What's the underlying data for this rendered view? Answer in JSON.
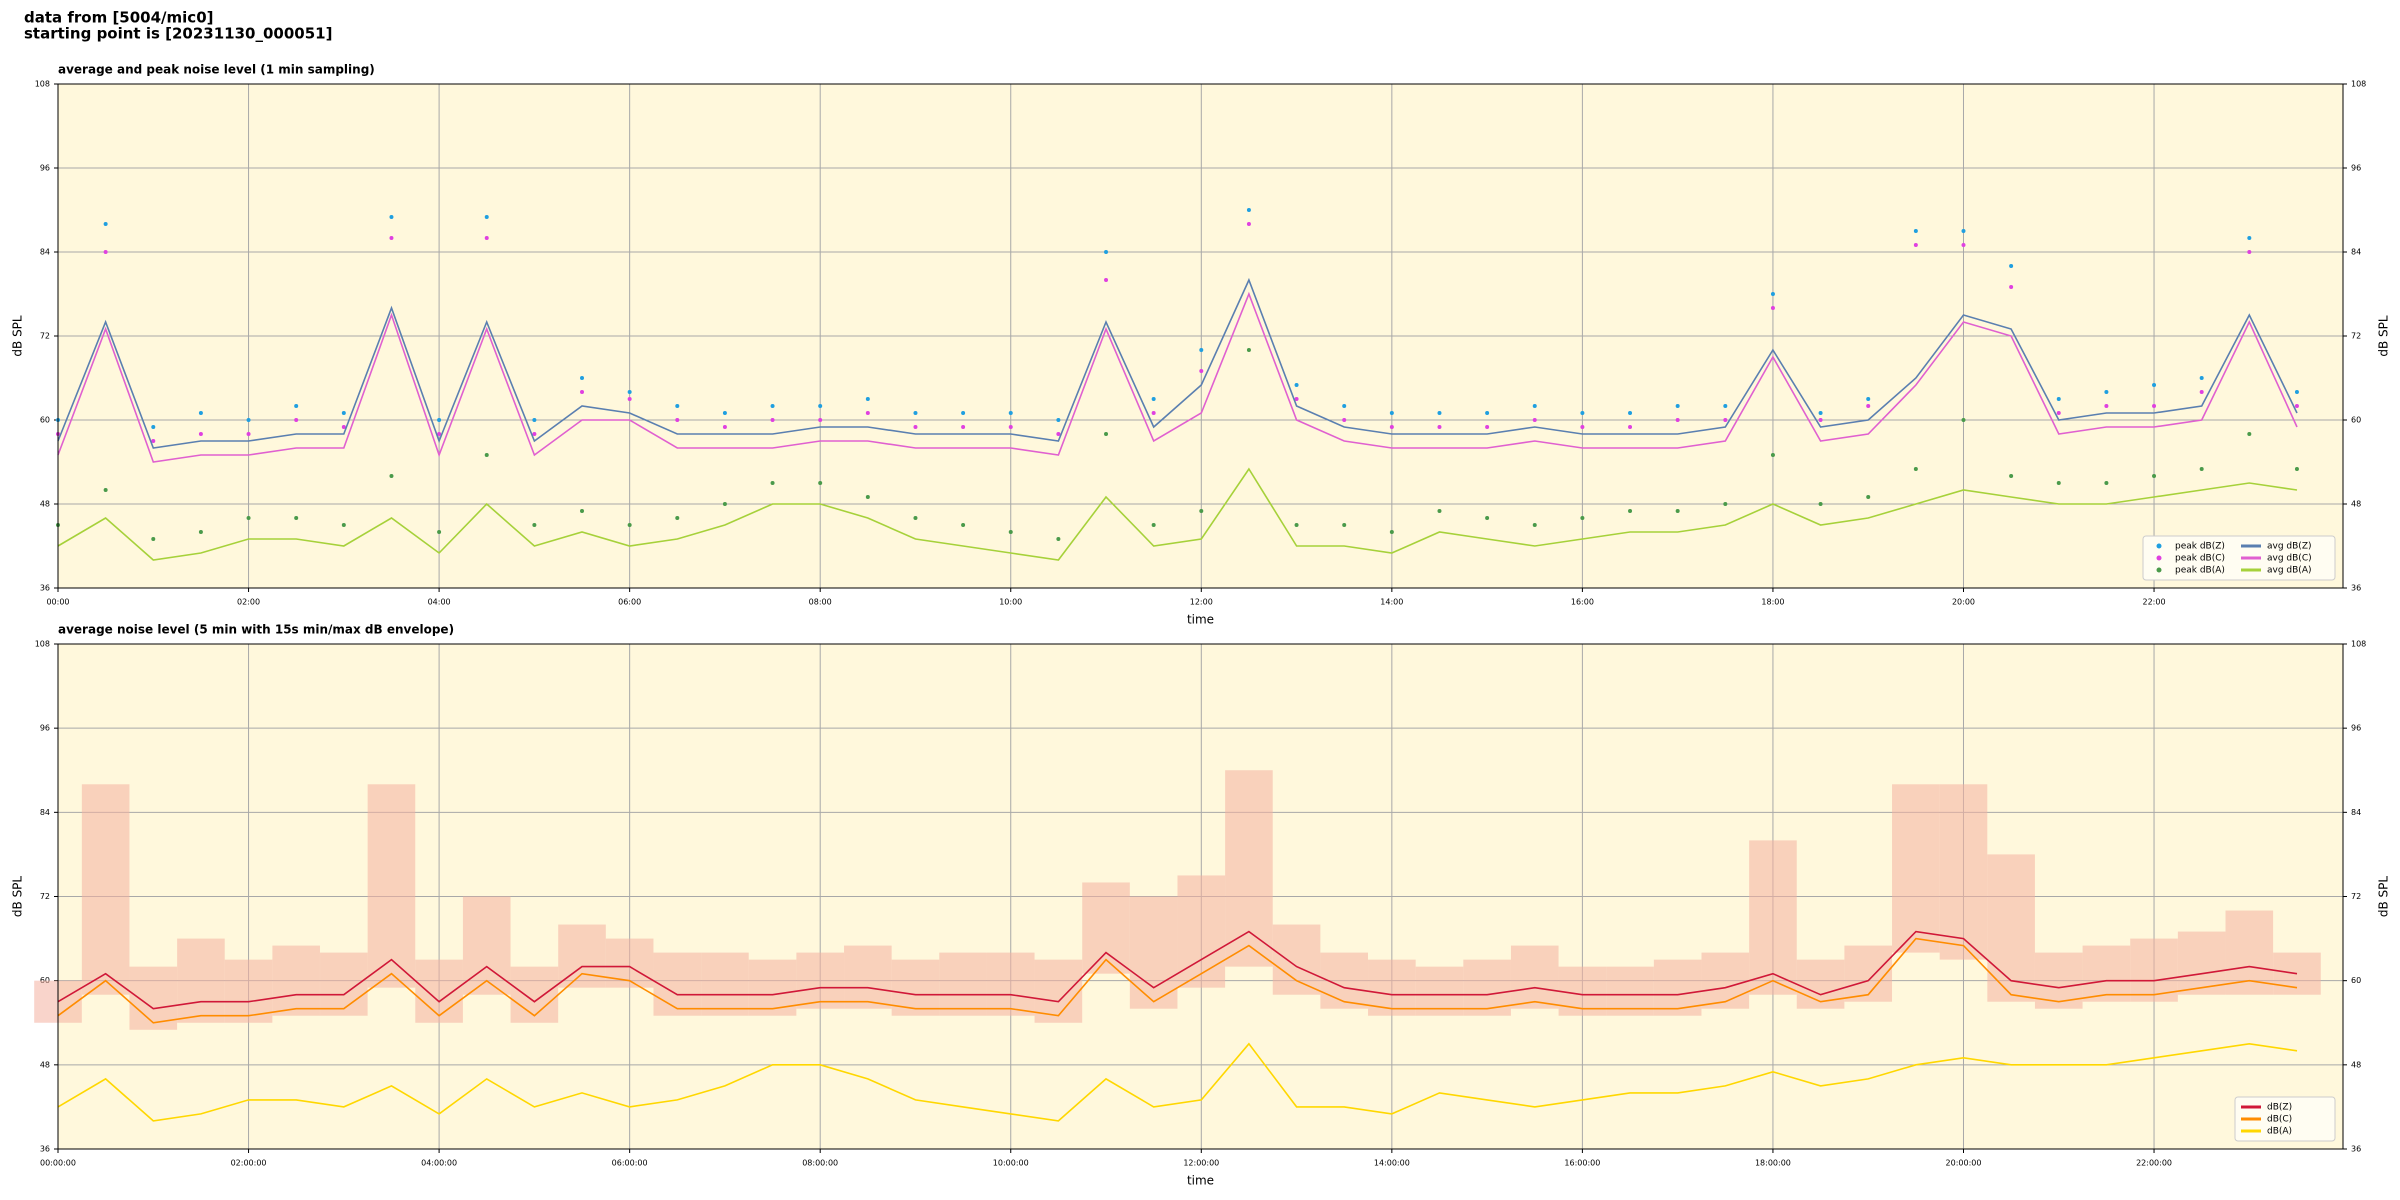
{
  "header": {
    "line1": "data from [5004/mic0]",
    "line2": "starting point is [20231130_000051]"
  },
  "chart_data": [
    {
      "type": "line",
      "title": "average and peak noise level (1 min sampling)",
      "x_label": "time",
      "y_label": "dB SPL",
      "x": [
        "00:00",
        "00:30",
        "01:00",
        "01:30",
        "02:00",
        "02:30",
        "03:00",
        "03:30",
        "04:00",
        "04:30",
        "05:00",
        "05:30",
        "06:00",
        "06:30",
        "07:00",
        "07:30",
        "08:00",
        "08:30",
        "09:00",
        "09:30",
        "10:00",
        "10:30",
        "11:00",
        "11:30",
        "12:00",
        "12:30",
        "13:00",
        "13:30",
        "14:00",
        "14:30",
        "15:00",
        "15:30",
        "16:00",
        "16:30",
        "17:00",
        "17:30",
        "18:00",
        "18:30",
        "19:00",
        "19:30",
        "20:00",
        "20:30",
        "21:00",
        "21:30",
        "22:00",
        "22:30",
        "23:00",
        "23:30"
      ],
      "xlim": [
        "00:00",
        "23:59"
      ],
      "xticks": [
        "00:00",
        "02:00",
        "04:00",
        "06:00",
        "08:00",
        "10:00",
        "12:00",
        "14:00",
        "16:00",
        "18:00",
        "20:00",
        "22:00"
      ],
      "ylim": [
        36,
        108
      ],
      "yticks": [
        36,
        48,
        60,
        72,
        84,
        96,
        108
      ],
      "grid": true,
      "background": "#fff8dc",
      "legend_location": "lower right",
      "legend_columns": 2,
      "series": [
        {
          "name": "peak dB(Z)",
          "style": "points",
          "color": "#1f9fe0",
          "values": [
            60,
            88,
            59,
            61,
            60,
            62,
            61,
            89,
            60,
            89,
            60,
            66,
            64,
            62,
            61,
            62,
            62,
            63,
            61,
            61,
            61,
            60,
            84,
            63,
            70,
            90,
            65,
            62,
            61,
            61,
            61,
            62,
            61,
            61,
            62,
            62,
            78,
            61,
            63,
            87,
            87,
            82,
            63,
            64,
            65,
            66,
            86,
            64
          ]
        },
        {
          "name": "peak dB(C)",
          "style": "points",
          "color": "#e040e0",
          "values": [
            58,
            84,
            57,
            58,
            58,
            60,
            59,
            86,
            58,
            86,
            58,
            64,
            63,
            60,
            59,
            60,
            60,
            61,
            59,
            59,
            59,
            58,
            80,
            61,
            67,
            88,
            63,
            60,
            59,
            59,
            59,
            60,
            59,
            59,
            60,
            60,
            76,
            60,
            62,
            85,
            85,
            79,
            61,
            62,
            62,
            64,
            84,
            62
          ]
        },
        {
          "name": "peak dB(A)",
          "style": "points",
          "color": "#4a9a4a",
          "values": [
            45,
            50,
            43,
            44,
            46,
            46,
            45,
            52,
            44,
            55,
            45,
            47,
            45,
            46,
            48,
            51,
            51,
            49,
            46,
            45,
            44,
            43,
            58,
            45,
            47,
            70,
            45,
            45,
            44,
            47,
            46,
            45,
            46,
            47,
            47,
            48,
            55,
            48,
            49,
            53,
            60,
            52,
            51,
            51,
            52,
            53,
            58,
            53
          ]
        },
        {
          "name": "avg dB(Z)",
          "style": "line",
          "color": "#5a7fb0",
          "values": [
            57,
            74,
            56,
            57,
            57,
            58,
            58,
            76,
            57,
            74,
            57,
            62,
            61,
            58,
            58,
            58,
            59,
            59,
            58,
            58,
            58,
            57,
            74,
            59,
            65,
            80,
            62,
            59,
            58,
            58,
            58,
            59,
            58,
            58,
            58,
            59,
            70,
            59,
            60,
            66,
            75,
            73,
            60,
            61,
            61,
            62,
            75,
            61
          ]
        },
        {
          "name": "avg dB(C)",
          "style": "line",
          "color": "#e060d0",
          "values": [
            55,
            73,
            54,
            55,
            55,
            56,
            56,
            75,
            55,
            73,
            55,
            60,
            60,
            56,
            56,
            56,
            57,
            57,
            56,
            56,
            56,
            55,
            73,
            57,
            61,
            78,
            60,
            57,
            56,
            56,
            56,
            57,
            56,
            56,
            56,
            57,
            69,
            57,
            58,
            65,
            74,
            72,
            58,
            59,
            59,
            60,
            74,
            59
          ]
        },
        {
          "name": "avg dB(A)",
          "style": "line",
          "color": "#a6d13a",
          "values": [
            42,
            46,
            40,
            41,
            43,
            43,
            42,
            46,
            41,
            48,
            42,
            44,
            42,
            43,
            45,
            48,
            48,
            46,
            43,
            42,
            41,
            40,
            49,
            42,
            43,
            53,
            42,
            42,
            41,
            44,
            43,
            42,
            43,
            44,
            44,
            45,
            48,
            45,
            46,
            48,
            50,
            49,
            48,
            48,
            49,
            50,
            51,
            50
          ]
        }
      ]
    },
    {
      "type": "line",
      "title": "average noise level (5 min with 15s min/max dB envelope)",
      "x_label": "time",
      "y_label": "dB SPL",
      "x": [
        "00:00",
        "00:30",
        "01:00",
        "01:30",
        "02:00",
        "02:30",
        "03:00",
        "03:30",
        "04:00",
        "04:30",
        "05:00",
        "05:30",
        "06:00",
        "06:30",
        "07:00",
        "07:30",
        "08:00",
        "08:30",
        "09:00",
        "09:30",
        "10:00",
        "10:30",
        "11:00",
        "11:30",
        "12:00",
        "12:30",
        "13:00",
        "13:30",
        "14:00",
        "14:30",
        "15:00",
        "15:30",
        "16:00",
        "16:30",
        "17:00",
        "17:30",
        "18:00",
        "18:30",
        "19:00",
        "19:30",
        "20:00",
        "20:30",
        "21:00",
        "21:30",
        "22:00",
        "22:30",
        "23:00",
        "23:30"
      ],
      "xlim": [
        "00:00",
        "23:59"
      ],
      "xticks": [
        {
          "value": "00:00",
          "label": "00:00:00"
        },
        {
          "value": "02:00",
          "label": "02:00:00"
        },
        {
          "value": "04:00",
          "label": "04:00:00"
        },
        {
          "value": "06:00",
          "label": "06:00:00"
        },
        {
          "value": "08:00",
          "label": "08:00:00"
        },
        {
          "value": "10:00",
          "label": "10:00:00"
        },
        {
          "value": "12:00",
          "label": "12:00:00"
        },
        {
          "value": "14:00",
          "label": "14:00:00"
        },
        {
          "value": "16:00",
          "label": "16:00:00"
        },
        {
          "value": "18:00",
          "label": "18:00:00"
        },
        {
          "value": "20:00",
          "label": "20:00:00"
        },
        {
          "value": "22:00",
          "label": "22:00:00"
        }
      ],
      "ylim": [
        36,
        108
      ],
      "yticks": [
        36,
        48,
        60,
        72,
        84,
        96,
        108
      ],
      "grid": true,
      "background": "#fff8dc",
      "legend_location": "lower right",
      "legend_columns": 1,
      "envelope": {
        "color": "#f4b0a0",
        "min": [
          54,
          58,
          53,
          54,
          54,
          55,
          55,
          59,
          54,
          58,
          54,
          59,
          59,
          55,
          55,
          55,
          56,
          56,
          55,
          55,
          55,
          54,
          61,
          56,
          59,
          62,
          58,
          56,
          55,
          55,
          55,
          56,
          55,
          55,
          55,
          56,
          58,
          56,
          57,
          64,
          63,
          57,
          56,
          57,
          57,
          58,
          58,
          58
        ],
        "max": [
          60,
          88,
          62,
          66,
          63,
          65,
          64,
          88,
          63,
          72,
          62,
          68,
          66,
          64,
          64,
          63,
          64,
          65,
          63,
          64,
          64,
          63,
          74,
          72,
          75,
          90,
          68,
          64,
          63,
          62,
          63,
          65,
          62,
          62,
          63,
          64,
          80,
          63,
          65,
          88,
          88,
          78,
          64,
          65,
          66,
          67,
          70,
          64
        ]
      },
      "series": [
        {
          "name": "dB(Z)",
          "style": "line",
          "color": "#d01838",
          "values": [
            57,
            61,
            56,
            57,
            57,
            58,
            58,
            63,
            57,
            62,
            57,
            62,
            62,
            58,
            58,
            58,
            59,
            59,
            58,
            58,
            58,
            57,
            64,
            59,
            63,
            67,
            62,
            59,
            58,
            58,
            58,
            59,
            58,
            58,
            58,
            59,
            61,
            58,
            60,
            67,
            66,
            60,
            59,
            60,
            60,
            61,
            62,
            61
          ]
        },
        {
          "name": "dB(C)",
          "style": "line",
          "color": "#ff8c00",
          "values": [
            55,
            60,
            54,
            55,
            55,
            56,
            56,
            61,
            55,
            60,
            55,
            61,
            60,
            56,
            56,
            56,
            57,
            57,
            56,
            56,
            56,
            55,
            63,
            57,
            61,
            65,
            60,
            57,
            56,
            56,
            56,
            57,
            56,
            56,
            56,
            57,
            60,
            57,
            58,
            66,
            65,
            58,
            57,
            58,
            58,
            59,
            60,
            59
          ]
        },
        {
          "name": "dB(A)",
          "style": "line",
          "color": "#ffd700",
          "values": [
            42,
            46,
            40,
            41,
            43,
            43,
            42,
            45,
            41,
            46,
            42,
            44,
            42,
            43,
            45,
            48,
            48,
            46,
            43,
            42,
            41,
            40,
            46,
            42,
            43,
            51,
            42,
            42,
            41,
            44,
            43,
            42,
            43,
            44,
            44,
            45,
            47,
            45,
            46,
            48,
            49,
            48,
            48,
            48,
            49,
            50,
            51,
            50
          ]
        }
      ]
    }
  ]
}
